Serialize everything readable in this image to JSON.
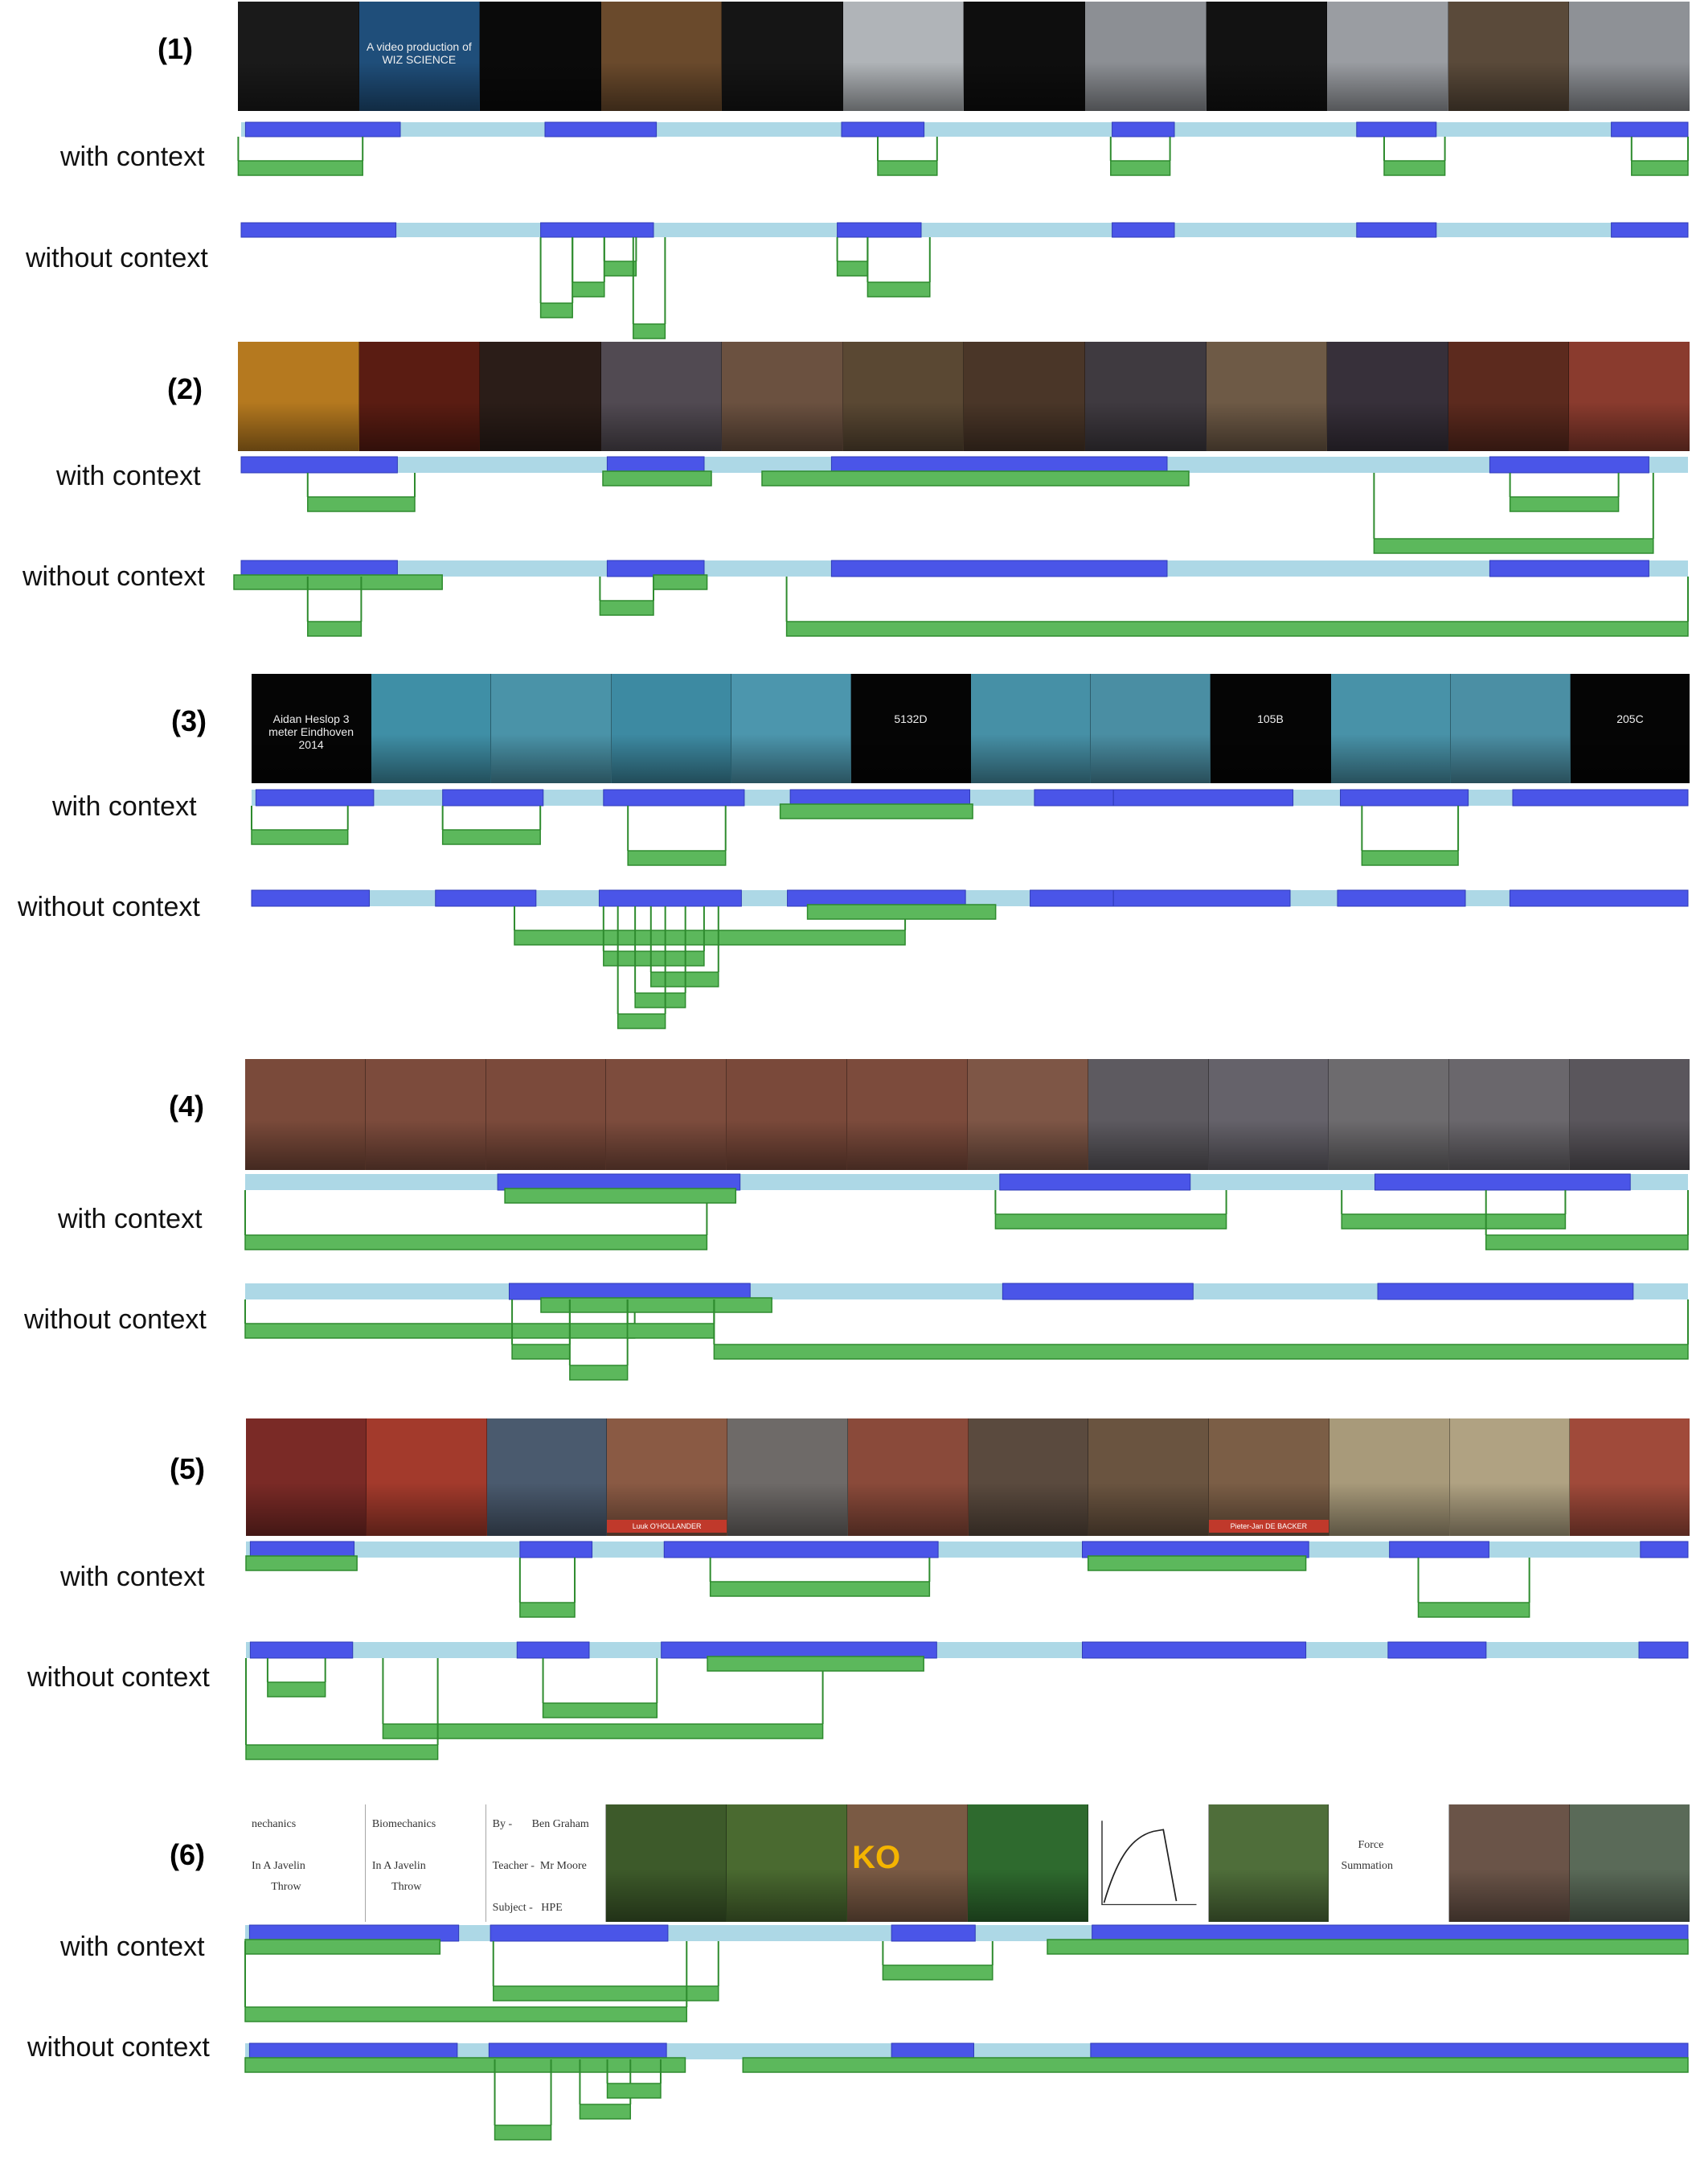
{
  "row_labels": {
    "with_context": "with context",
    "without_context": "without context"
  },
  "colors": {
    "track": "#add8e6",
    "segment": "#4a55e8",
    "bracket_fill": "#5cb85c",
    "bracket_stroke": "#2e8b2e"
  },
  "panels": [
    {
      "label": "(1)",
      "frames": [
        {
          "bg": "#1a1a1a",
          "text": ""
        },
        {
          "bg": "#1f4e7a",
          "text": "A video production of\nWIZ SCIENCE"
        },
        {
          "bg": "#0a0a0a",
          "text": ""
        },
        {
          "bg": "#6a4a2c",
          "text": ""
        },
        {
          "bg": "#151515",
          "text": ""
        },
        {
          "bg": "#b0b4b8",
          "text": ""
        },
        {
          "bg": "#0e0e0e",
          "text": ""
        },
        {
          "bg": "#8c8f94",
          "text": ""
        },
        {
          "bg": "#121212",
          "text": ""
        },
        {
          "bg": "#9a9da2",
          "text": ""
        },
        {
          "bg": "#5a4a3a",
          "text": ""
        },
        {
          "bg": "#8e9196",
          "text": ""
        }
      ],
      "with_context": {
        "segments": [
          [
            0.3,
            11
          ],
          [
            21,
            28.7
          ],
          [
            41.5,
            47.2
          ],
          [
            60.2,
            64.5
          ],
          [
            77.1,
            82.6
          ],
          [
            94.7,
            100
          ]
        ],
        "brackets": [
          [
            -0.2,
            8.4,
            0
          ],
          [
            44,
            48.1,
            0
          ],
          [
            60.1,
            64.2,
            0
          ],
          [
            79,
            83.2,
            0
          ],
          [
            96.1,
            100,
            0
          ]
        ]
      },
      "without_context": {
        "segments": [
          [
            0,
            10.7
          ],
          [
            20.7,
            28.5
          ],
          [
            41.2,
            47
          ],
          [
            60.2,
            64.5
          ],
          [
            77.1,
            82.6
          ],
          [
            94.7,
            100
          ]
        ],
        "brackets": [
          [
            20.7,
            22.9,
            2
          ],
          [
            22.9,
            25.1,
            1
          ],
          [
            25.1,
            27.3,
            0
          ],
          [
            27.1,
            29.3,
            3
          ],
          [
            41.2,
            43.3,
            0
          ],
          [
            43.3,
            47.6,
            1
          ]
        ]
      }
    },
    {
      "label": "(2)",
      "frames": [
        {
          "bg": "#b5791f",
          "text": ""
        },
        {
          "bg": "#5a1c12",
          "text": ""
        },
        {
          "bg": "#2b1d18",
          "text": ""
        },
        {
          "bg": "#514a52",
          "text": ""
        },
        {
          "bg": "#6b5140",
          "text": ""
        },
        {
          "bg": "#5a4833",
          "text": ""
        },
        {
          "bg": "#4a3628",
          "text": ""
        },
        {
          "bg": "#3f3a40",
          "text": ""
        },
        {
          "bg": "#6e5a46",
          "text": ""
        },
        {
          "bg": "#37303a",
          "text": ""
        },
        {
          "bg": "#5c2a1e",
          "text": ""
        },
        {
          "bg": "#8a3b2e",
          "text": ""
        }
      ],
      "with_context": {
        "segments": [
          [
            0,
            10.8
          ],
          [
            25.3,
            32
          ],
          [
            40.8,
            64
          ],
          [
            86.3,
            97.3
          ]
        ],
        "brackets": [
          [
            4.6,
            12,
            0
          ],
          [
            25,
            32.5,
            -1
          ],
          [
            36,
            65.5,
            -1
          ],
          [
            78.3,
            97.6,
            2
          ],
          [
            87.7,
            95.2,
            0
          ]
        ]
      },
      "without_context": {
        "segments": [
          [
            0,
            10.8
          ],
          [
            25.3,
            32
          ],
          [
            40.8,
            64
          ],
          [
            86.3,
            97.3
          ]
        ],
        "brackets": [
          [
            -0.5,
            13.9,
            -1
          ],
          [
            4.6,
            8.3,
            1
          ],
          [
            24.8,
            28.5,
            0
          ],
          [
            28.5,
            32.2,
            -1
          ],
          [
            37.7,
            100,
            1
          ]
        ]
      }
    },
    {
      "label": "(3)",
      "frames": [
        {
          "bg": "#050505",
          "text": "Aidan Heslop 3\nmeter Eindhoven\n2014"
        },
        {
          "bg": "#3f8fa6",
          "text": ""
        },
        {
          "bg": "#4a93a8",
          "text": ""
        },
        {
          "bg": "#3d8aa2",
          "text": ""
        },
        {
          "bg": "#4c96ad",
          "text": ""
        },
        {
          "bg": "#050505",
          "text": "5132D"
        },
        {
          "bg": "#4690a6",
          "text": ""
        },
        {
          "bg": "#4a8ea3",
          "text": ""
        },
        {
          "bg": "#050505",
          "text": "105B"
        },
        {
          "bg": "#4892a8",
          "text": ""
        },
        {
          "bg": "#4b8fa4",
          "text": ""
        },
        {
          "bg": "#050505",
          "text": "205C"
        }
      ],
      "with_context": {
        "segments": [
          [
            0.3,
            8.5
          ],
          [
            13.3,
            20.3
          ],
          [
            24.5,
            34.3
          ],
          [
            37.5,
            50
          ],
          [
            54.5,
            60
          ],
          [
            60,
            72.5
          ],
          [
            75.8,
            84.7
          ],
          [
            87.8,
            100
          ]
        ],
        "brackets": [
          [
            0,
            6.7,
            0
          ],
          [
            13.3,
            20.1,
            0
          ],
          [
            26.2,
            33,
            1
          ],
          [
            36.8,
            50.2,
            -1
          ],
          [
            77.3,
            84,
            1
          ]
        ]
      },
      "without_context": {
        "segments": [
          [
            0,
            8.2
          ],
          [
            12.8,
            19.8
          ],
          [
            24.2,
            34.1
          ],
          [
            37.3,
            49.7
          ],
          [
            54.2,
            60
          ],
          [
            60,
            72.3
          ],
          [
            75.6,
            84.5
          ],
          [
            87.6,
            100
          ]
        ],
        "brackets": [
          [
            18.3,
            45.5,
            0
          ],
          [
            38.7,
            51.8,
            -1
          ],
          [
            24.5,
            31.5,
            1
          ],
          [
            27.8,
            32.5,
            2
          ],
          [
            26.7,
            30.2,
            3
          ],
          [
            25.5,
            28.8,
            4
          ]
        ]
      }
    },
    {
      "label": "(4)",
      "frames": [
        {
          "bg": "#7a4a3a",
          "text": ""
        },
        {
          "bg": "#7c4b3c",
          "text": ""
        },
        {
          "bg": "#7b4a3b",
          "text": ""
        },
        {
          "bg": "#7d4c3d",
          "text": ""
        },
        {
          "bg": "#7a493a",
          "text": ""
        },
        {
          "bg": "#7c4b3c",
          "text": ""
        },
        {
          "bg": "#7e5646",
          "text": ""
        },
        {
          "bg": "#5d5a60",
          "text": ""
        },
        {
          "bg": "#65626a",
          "text": ""
        },
        {
          "bg": "#6d6b6e",
          "text": ""
        },
        {
          "bg": "#6a676c",
          "text": ""
        },
        {
          "bg": "#5a565c",
          "text": ""
        }
      ],
      "with_context": {
        "segments": [
          [
            17.5,
            34.3
          ],
          [
            52.3,
            65.5
          ],
          [
            78.3,
            96
          ]
        ],
        "brackets": [
          [
            0,
            32,
            1
          ],
          [
            18,
            34,
            -1
          ],
          [
            52,
            68,
            0
          ],
          [
            76,
            91.5,
            0
          ],
          [
            86,
            100,
            1
          ]
        ]
      },
      "without_context": {
        "segments": [
          [
            18.3,
            35
          ],
          [
            52.5,
            65.7
          ],
          [
            78.5,
            96.2
          ]
        ],
        "brackets": [
          [
            0,
            27,
            0
          ],
          [
            20.5,
            36.5,
            -1
          ],
          [
            18.5,
            22.5,
            1
          ],
          [
            22.5,
            26.5,
            2
          ],
          [
            26.5,
            32.5,
            0
          ],
          [
            32.5,
            100,
            1
          ]
        ]
      }
    },
    {
      "label": "(5)",
      "frames": [
        {
          "bg": "#7a2a26",
          "text": ""
        },
        {
          "bg": "#a33a2c",
          "text": ""
        },
        {
          "bg": "#4a5a6e",
          "text": ""
        },
        {
          "bg": "#8a5a44",
          "text": "Luuk O'HOLLANDER"
        },
        {
          "bg": "#6e6a68",
          "text": ""
        },
        {
          "bg": "#8a4a3a",
          "text": ""
        },
        {
          "bg": "#5a4a3e",
          "text": ""
        },
        {
          "bg": "#6a5440",
          "text": ""
        },
        {
          "bg": "#7b5e46",
          "text": "Pieter-Jan DE BACKER"
        },
        {
          "bg": "#a89a7a",
          "text": ""
        },
        {
          "bg": "#b0a282",
          "text": ""
        },
        {
          "bg": "#a04a3a",
          "text": ""
        }
      ],
      "with_context": {
        "segments": [
          [
            0.3,
            7.5
          ],
          [
            19,
            24
          ],
          [
            29,
            48
          ],
          [
            58,
            73.7
          ],
          [
            79.3,
            86.2
          ],
          [
            96.7,
            100
          ]
        ],
        "brackets": [
          [
            0,
            7.7,
            -1
          ],
          [
            19,
            22.8,
            1
          ],
          [
            32.2,
            47.4,
            0
          ],
          [
            58.4,
            73.5,
            -1
          ],
          [
            81.3,
            89,
            1
          ]
        ]
      },
      "without_context": {
        "segments": [
          [
            0.3,
            7.4
          ],
          [
            18.8,
            23.8
          ],
          [
            28.8,
            47.9
          ],
          [
            58,
            73.5
          ],
          [
            79.2,
            86
          ],
          [
            96.6,
            100
          ]
        ],
        "brackets": [
          [
            1.5,
            5.5,
            0
          ],
          [
            9.5,
            40,
            2
          ],
          [
            0,
            13.3,
            3
          ],
          [
            20.6,
            28.5,
            1
          ],
          [
            32,
            47,
            -1
          ]
        ]
      }
    },
    {
      "label": "(6)",
      "frames": [
        {
          "bg": "#ffffff",
          "kind": "doc",
          "text": "nechanics\n\nIn A Javelin\n       Throw"
        },
        {
          "bg": "#ffffff",
          "kind": "doc",
          "text": "Biomechanics\n\nIn A Javelin\n       Throw"
        },
        {
          "bg": "#ffffff",
          "kind": "doc",
          "text": "By -       Ben Graham\n\nTeacher -  Mr Moore\n\nSubject -   HPE"
        },
        {
          "bg": "#3d5a2a",
          "text": ""
        },
        {
          "bg": "#4a6a30",
          "text": ""
        },
        {
          "bg": "#7a5a44",
          "text": "KO"
        },
        {
          "bg": "#2e6a2e",
          "text": ""
        },
        {
          "bg": "#ffffff",
          "kind": "plot",
          "text": ""
        },
        {
          "bg": "#4f6e3a",
          "text": ""
        },
        {
          "bg": "#ffffff",
          "kind": "doc",
          "text": "\n        Force\n  Summation"
        },
        {
          "bg": "#6a5448",
          "text": ""
        },
        {
          "bg": "#5a6a58",
          "text": ""
        }
      ],
      "with_context": {
        "segments": [
          [
            0.3,
            14.8
          ],
          [
            17,
            29.3
          ],
          [
            44.8,
            50.6
          ],
          [
            58.7,
            100
          ]
        ],
        "brackets": [
          [
            0,
            13.5,
            -1
          ],
          [
            17.2,
            32.8,
            1
          ],
          [
            0,
            30.6,
            2
          ],
          [
            44.2,
            51.8,
            0
          ],
          [
            55.6,
            100,
            -1
          ]
        ]
      },
      "without_context": {
        "segments": [
          [
            0.3,
            14.7
          ],
          [
            16.9,
            29.2
          ],
          [
            44.8,
            50.5
          ],
          [
            58.6,
            100
          ]
        ],
        "brackets": [
          [
            0,
            30.5,
            -1
          ],
          [
            17.3,
            21.2,
            2
          ],
          [
            23.2,
            26.7,
            1
          ],
          [
            25.1,
            28.8,
            0
          ],
          [
            34.5,
            100,
            -1
          ]
        ]
      }
    }
  ]
}
